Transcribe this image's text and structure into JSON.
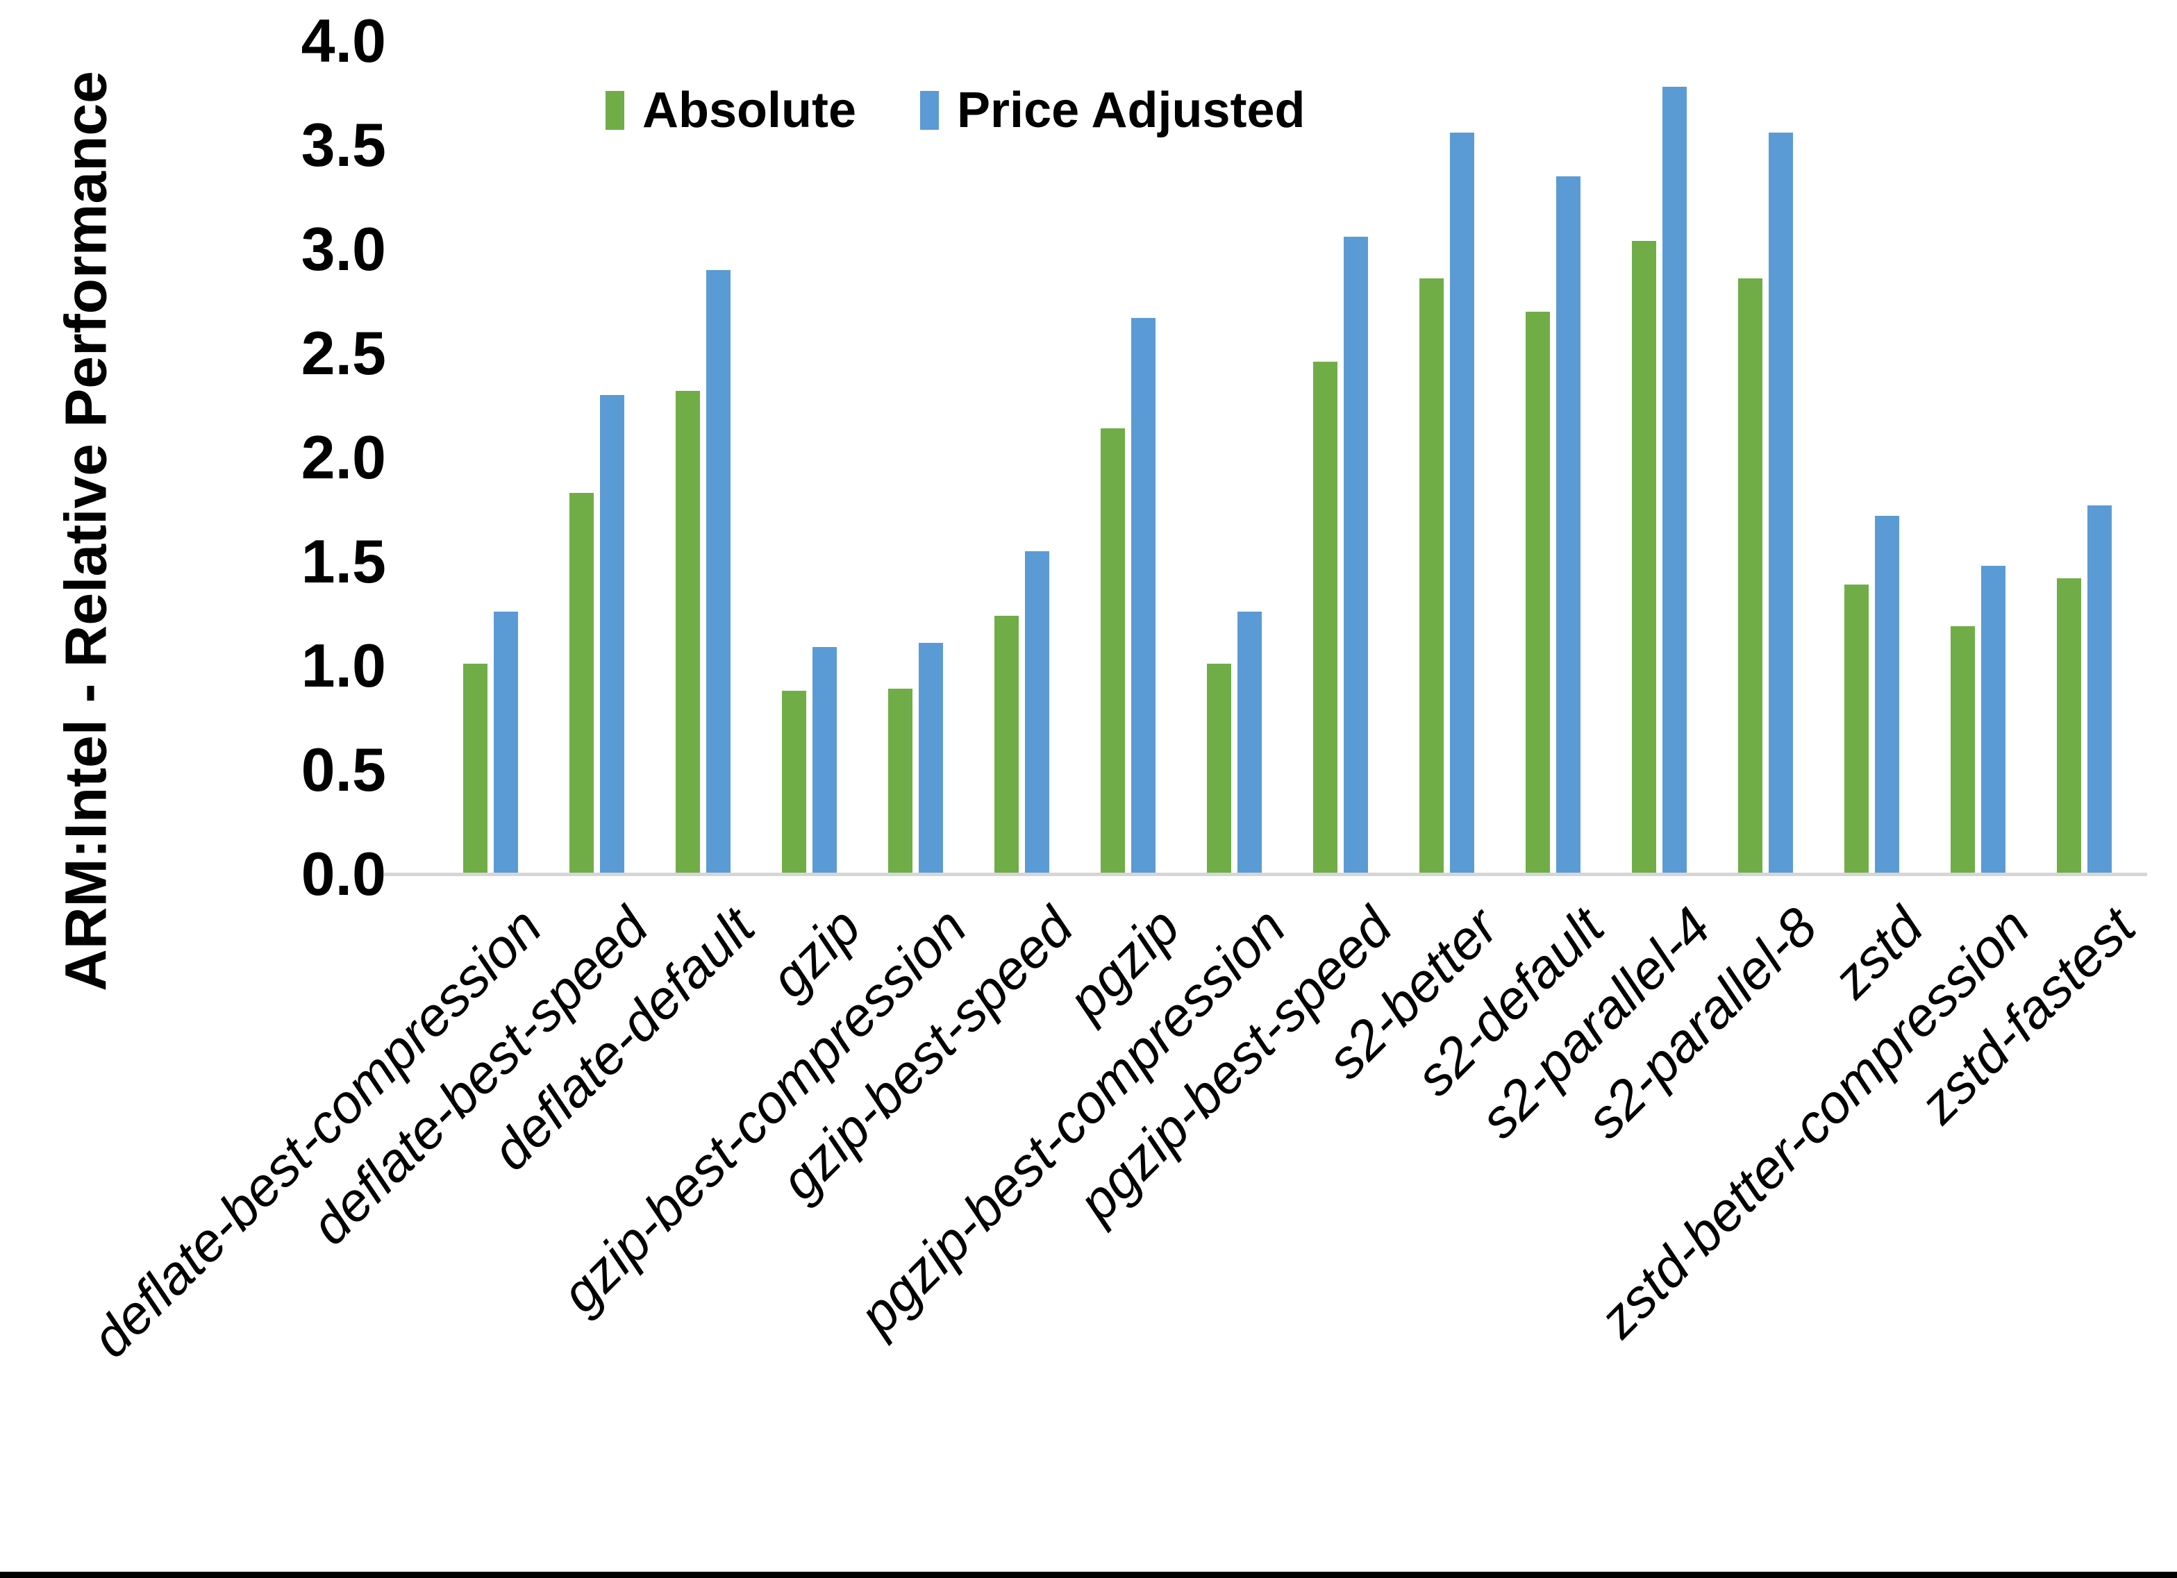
{
  "figure": {
    "background_color": "#ffffff",
    "bottom_border_color": "#000000"
  },
  "chart_data": {
    "type": "bar",
    "title": "",
    "ylabel": "ARM:Intel - Relative Performance",
    "xlabel": "",
    "ylim": [
      0.0,
      4.0
    ],
    "y_tick_step": 0.5,
    "y_ticks": [
      "0.0",
      "0.5",
      "1.0",
      "1.5",
      "2.0",
      "2.5",
      "3.0",
      "3.5",
      "4.0"
    ],
    "grid": "off",
    "legend_position": "top-center",
    "axis_line_color": "#d6d6d6",
    "categories": [
      "deflate-best-compression",
      "deflate-best-speed",
      "deflate-default",
      "gzip",
      "gzip-best-compression",
      "gzip-best-speed",
      "pgzip",
      "pgzip-best-compression",
      "pgzip-best-speed",
      "s2-better",
      "s2-default",
      "s2-parallel-4",
      "s2-parallel-8",
      "zstd",
      "zstd-better-compression",
      "zstd-fastest"
    ],
    "series": [
      {
        "name": "Absolute",
        "color": "#70AD47",
        "values": [
          1.01,
          1.83,
          2.32,
          0.88,
          0.89,
          1.24,
          2.14,
          1.01,
          2.46,
          2.86,
          2.7,
          3.04,
          2.86,
          1.39,
          1.19,
          1.42
        ]
      },
      {
        "name": "Price Adjusted",
        "color": "#5B9BD5",
        "values": [
          1.26,
          2.3,
          2.9,
          1.09,
          1.11,
          1.55,
          2.67,
          1.26,
          3.06,
          3.56,
          3.35,
          3.78,
          3.56,
          1.72,
          1.48,
          1.77
        ]
      }
    ]
  }
}
